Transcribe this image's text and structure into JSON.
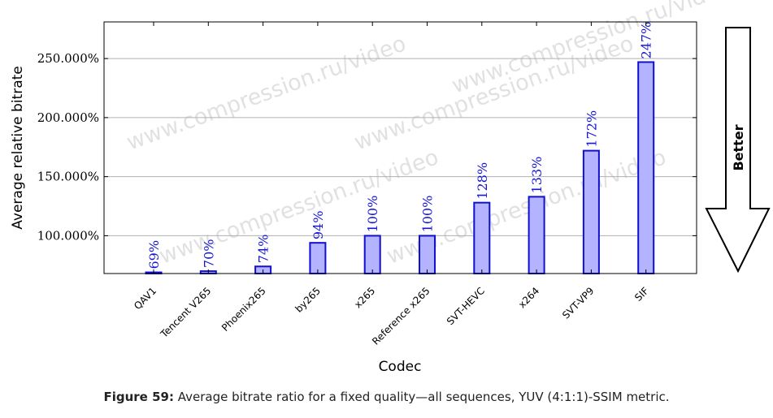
{
  "chart_data": {
    "type": "bar",
    "title": "",
    "xlabel": "Codec",
    "ylabel": "Average relative bitrate",
    "categories": [
      "QAV1",
      "Tencent V265",
      "Phoenix265",
      "by265",
      "x265",
      "Reference x265",
      "SVT-HEVC",
      "x264",
      "SVT-VP9",
      "SIF"
    ],
    "values": [
      69,
      70,
      74,
      94,
      100,
      100,
      128,
      133,
      172,
      247
    ],
    "data_labels": [
      "69%",
      "70%",
      "74%",
      "94%",
      "100%",
      "100%",
      "128%",
      "133%",
      "172%",
      "247%"
    ],
    "ylim": [
      68,
      281
    ],
    "yticks": [
      100,
      150,
      200,
      250
    ],
    "ytick_labels": [
      "100.000%",
      "150.000%",
      "200.000%",
      "250.000%"
    ],
    "grid": true,
    "bar_fill": "#b3b3ff",
    "bar_stroke": "#1010d0",
    "label_color": "#1515d6"
  },
  "watermark": {
    "text": "www.compression.ru/video"
  },
  "better_indicator": {
    "label": "Better",
    "direction": "down"
  },
  "caption": {
    "prefix": "Figure 59:",
    "text": "Average bitrate ratio for a fixed quality—all sequences, YUV (4:1:1)-SSIM metric."
  }
}
